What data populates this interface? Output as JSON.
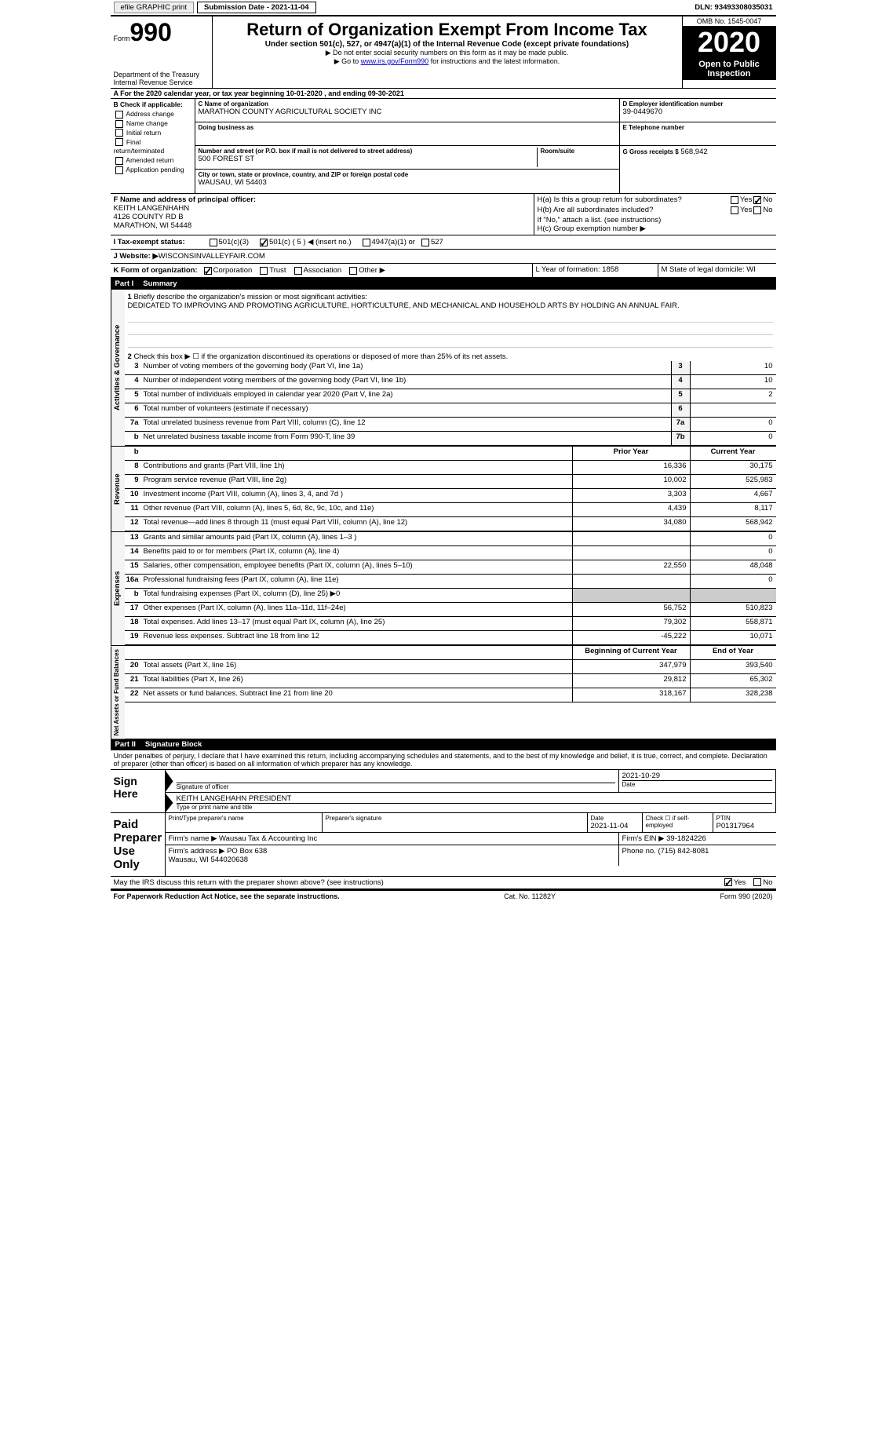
{
  "top": {
    "efile": "efile GRAPHIC print",
    "submission": "Submission Date - 2021-11-04",
    "dln": "DLN: 93493308035031"
  },
  "header": {
    "form_word": "Form",
    "form_num": "990",
    "dept": "Department of the Treasury\nInternal Revenue Service",
    "title": "Return of Organization Exempt From Income Tax",
    "subtitle": "Under section 501(c), 527, or 4947(a)(1) of the Internal Revenue Code (except private foundations)",
    "note1": "▶ Do not enter social security numbers on this form as it may be made public.",
    "note2_a": "▶ Go to ",
    "note2_link": "www.irs.gov/Form990",
    "note2_b": " for instructions and the latest information.",
    "omb": "OMB No. 1545-0047",
    "year": "2020",
    "inspect": "Open to Public Inspection"
  },
  "taxyear": "For the 2020 calendar year, or tax year beginning 10-01-2020    , and ending 09-30-2021",
  "colB": {
    "label": "B Check if applicable:",
    "items": [
      "Address change",
      "Name change",
      "Initial return",
      "Final return/terminated",
      "Amended return",
      "Application pending"
    ]
  },
  "colC": {
    "name_label": "C Name of organization",
    "name": "MARATHON COUNTY AGRICULTURAL SOCIETY INC",
    "dba_label": "Doing business as",
    "street_label": "Number and street (or P.O. box if mail is not delivered to street address)",
    "room_label": "Room/suite",
    "street": "500 FOREST ST",
    "city_label": "City or town, state or province, country, and ZIP or foreign postal code",
    "city": "WAUSAU, WI  54403"
  },
  "colD": {
    "ein_label": "D Employer identification number",
    "ein": "39-0449670",
    "phone_label": "E Telephone number",
    "gross_label": "G Gross receipts $",
    "gross": "568,942"
  },
  "sectionF": {
    "label": "F  Name and address of principal officer:",
    "name": "KEITH LANGENHAHN",
    "addr1": "4126 COUNTY RD B",
    "addr2": "MARATHON, WI  54448"
  },
  "sectionH": {
    "ha": "H(a)  Is this a group return for subordinates?",
    "hb": "H(b)  Are all subordinates included?",
    "hb_note": "If \"No,\" attach a list. (see instructions)",
    "hc": "H(c)  Group exemption number ▶"
  },
  "rowI": {
    "label": "I    Tax-exempt status:",
    "opt1": "501(c)(3)",
    "opt2": "501(c) ( 5 ) ◀ (insert no.)",
    "opt3": "4947(a)(1) or",
    "opt4": "527"
  },
  "rowJ": {
    "label": "J   Website: ▶ ",
    "val": "WISCONSINVALLEYFAIR.COM"
  },
  "rowK": {
    "label": "K Form of organization:",
    "o1": "Corporation",
    "o2": "Trust",
    "o3": "Association",
    "o4": "Other ▶"
  },
  "rowLM": {
    "L": "L Year of formation: 1858",
    "M": "M State of legal domicile: WI"
  },
  "part1": {
    "num": "Part I",
    "title": "Summary"
  },
  "summary": {
    "q1_label": "Briefly describe the organization's mission or most significant activities:",
    "q1": "DEDICATED TO IMPROVING AND PROMOTING AGRICULTURE, HORTICULTURE, AND MECHANICAL AND HOUSEHOLD ARTS BY HOLDING AN ANNUAL FAIR.",
    "q2": "Check this box ▶ ☐  if the organization discontinued its operations or disposed of more than 25% of its net assets.",
    "lines_gov": [
      {
        "n": "3",
        "d": "Number of voting members of the governing body (Part VI, line 1a)",
        "b": "3",
        "v": "10"
      },
      {
        "n": "4",
        "d": "Number of independent voting members of the governing body (Part VI, line 1b)",
        "b": "4",
        "v": "10"
      },
      {
        "n": "5",
        "d": "Total number of individuals employed in calendar year 2020 (Part V, line 2a)",
        "b": "5",
        "v": "2"
      },
      {
        "n": "6",
        "d": "Total number of volunteers (estimate if necessary)",
        "b": "6",
        "v": ""
      },
      {
        "n": "7a",
        "d": "Total unrelated business revenue from Part VIII, column (C), line 12",
        "b": "7a",
        "v": "0"
      },
      {
        "n": "b",
        "d": "Net unrelated business taxable income from Form 990-T, line 39",
        "b": "7b",
        "v": "0"
      }
    ],
    "col_prior": "Prior Year",
    "col_current": "Current Year",
    "rev": [
      {
        "n": "8",
        "d": "Contributions and grants (Part VIII, line 1h)",
        "p": "16,336",
        "c": "30,175"
      },
      {
        "n": "9",
        "d": "Program service revenue (Part VIII, line 2g)",
        "p": "10,002",
        "c": "525,983"
      },
      {
        "n": "10",
        "d": "Investment income (Part VIII, column (A), lines 3, 4, and 7d )",
        "p": "3,303",
        "c": "4,667"
      },
      {
        "n": "11",
        "d": "Other revenue (Part VIII, column (A), lines 5, 6d, 8c, 9c, 10c, and 11e)",
        "p": "4,439",
        "c": "8,117"
      },
      {
        "n": "12",
        "d": "Total revenue—add lines 8 through 11 (must equal Part VIII, column (A), line 12)",
        "p": "34,080",
        "c": "568,942"
      }
    ],
    "exp": [
      {
        "n": "13",
        "d": "Grants and similar amounts paid (Part IX, column (A), lines 1–3 )",
        "p": "",
        "c": "0"
      },
      {
        "n": "14",
        "d": "Benefits paid to or for members (Part IX, column (A), line 4)",
        "p": "",
        "c": "0"
      },
      {
        "n": "15",
        "d": "Salaries, other compensation, employee benefits (Part IX, column (A), lines 5–10)",
        "p": "22,550",
        "c": "48,048"
      },
      {
        "n": "16a",
        "d": "Professional fundraising fees (Part IX, column (A), line 11e)",
        "p": "",
        "c": "0"
      },
      {
        "n": "b",
        "d": "Total fundraising expenses (Part IX, column (D), line 25) ▶0",
        "p": "shade",
        "c": "shade"
      },
      {
        "n": "17",
        "d": "Other expenses (Part IX, column (A), lines 11a–11d, 11f–24e)",
        "p": "56,752",
        "c": "510,823"
      },
      {
        "n": "18",
        "d": "Total expenses. Add lines 13–17 (must equal Part IX, column (A), line 25)",
        "p": "79,302",
        "c": "558,871"
      },
      {
        "n": "19",
        "d": "Revenue less expenses. Subtract line 18 from line 12",
        "p": "-45,222",
        "c": "10,071"
      }
    ],
    "col_begin": "Beginning of Current Year",
    "col_end": "End of Year",
    "net": [
      {
        "n": "20",
        "d": "Total assets (Part X, line 16)",
        "p": "347,979",
        "c": "393,540"
      },
      {
        "n": "21",
        "d": "Total liabilities (Part X, line 26)",
        "p": "29,812",
        "c": "65,302"
      },
      {
        "n": "22",
        "d": "Net assets or fund balances. Subtract line 21 from line 20",
        "p": "318,167",
        "c": "328,238"
      }
    ],
    "side_gov": "Activities & Governance",
    "side_rev": "Revenue",
    "side_exp": "Expenses",
    "side_net": "Net Assets or Fund Balances"
  },
  "part2": {
    "num": "Part II",
    "title": "Signature Block"
  },
  "sig": {
    "declaration": "Under penalties of perjury, I declare that I have examined this return, including accompanying schedules and statements, and to the best of my knowledge and belief, it is true, correct, and complete. Declaration of preparer (other than officer) is based on all information of which preparer has any knowledge.",
    "sign_here": "Sign Here",
    "sig_officer": "Signature of officer",
    "date": "Date",
    "date_val": "2021-10-29",
    "name": "KEITH LANGEHAHN PRESIDENT",
    "name_label": "Type or print name and title",
    "paid": "Paid Preparer Use Only",
    "pp_name": "Print/Type preparer's name",
    "pp_sig": "Preparer's signature",
    "pp_date": "Date",
    "pp_date_val": "2021-11-04",
    "pp_check": "Check ☐ if self-employed",
    "pp_ptin": "PTIN",
    "pp_ptin_val": "P01317964",
    "firm_name_l": "Firm's name    ▶",
    "firm_name": "Wausau Tax & Accounting Inc",
    "firm_ein_l": "Firm's EIN ▶",
    "firm_ein": "39-1824226",
    "firm_addr_l": "Firm's address ▶",
    "firm_addr": "PO Box 638\nWausau, WI  544020638",
    "firm_phone_l": "Phone no.",
    "firm_phone": "(715) 842-8081",
    "may": "May the IRS discuss this return with the preparer shown above? (see instructions)"
  },
  "footer": {
    "pra": "For Paperwork Reduction Act Notice, see the separate instructions.",
    "cat": "Cat. No. 11282Y",
    "form": "Form 990 (2020)"
  },
  "yes": "Yes",
  "no": "No"
}
